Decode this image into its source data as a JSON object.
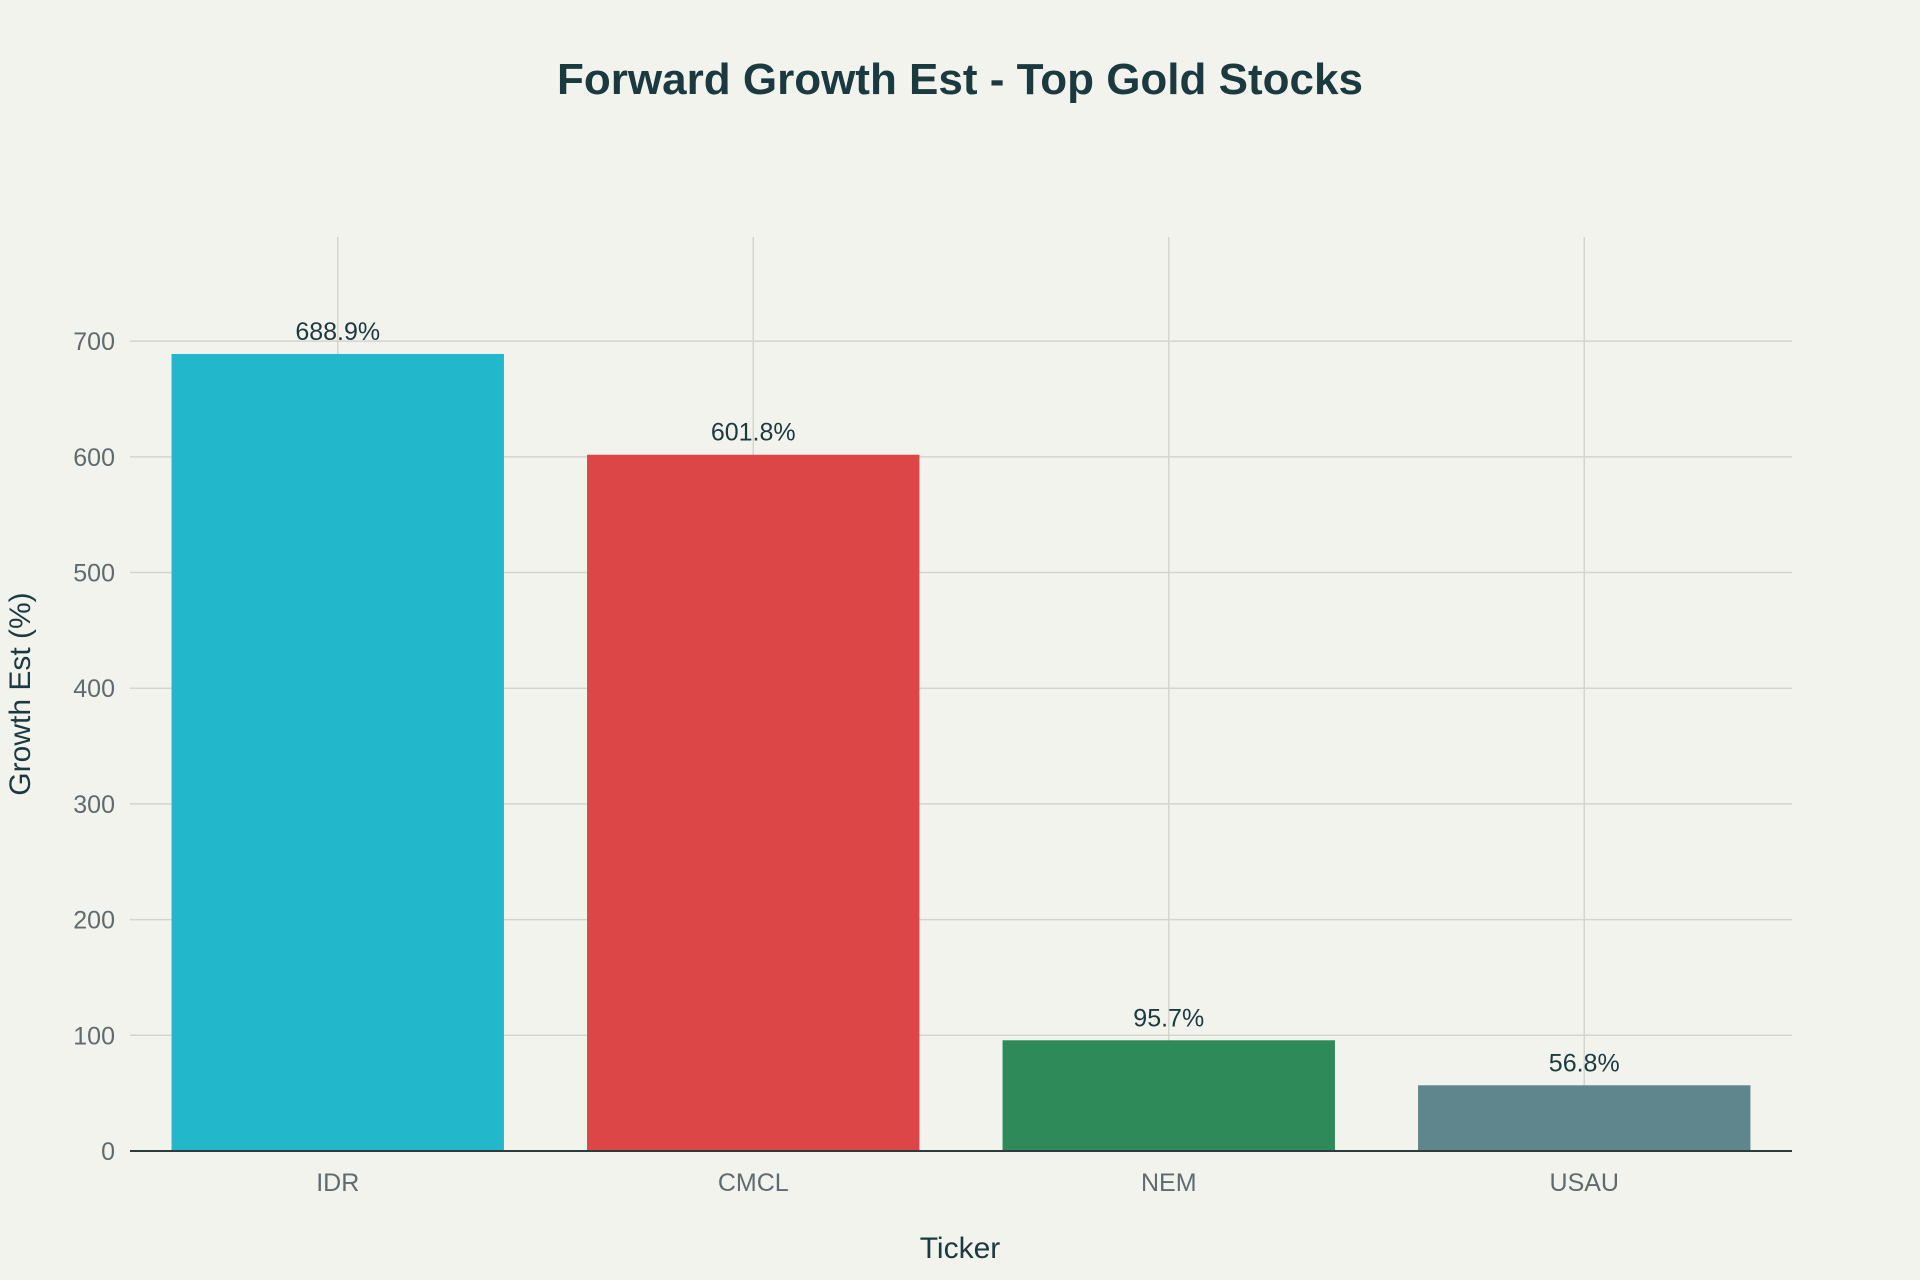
{
  "chart_data": {
    "type": "bar",
    "title": "Forward Growth Est - Top Gold Stocks",
    "xlabel": "Ticker",
    "ylabel": "Growth Est (%)",
    "categories": [
      "IDR",
      "CMCL",
      "NEM",
      "USAU"
    ],
    "values": [
      688.9,
      601.8,
      95.7,
      56.8
    ],
    "data_labels": [
      "688.9%",
      "601.8%",
      "95.7%",
      "56.8%"
    ],
    "colors": [
      "#22b7cb",
      "#dc4647",
      "#2e8a58",
      "#5e868c"
    ],
    "ylim": [
      0,
      790
    ],
    "yticks": [
      0,
      100,
      200,
      300,
      400,
      500,
      600,
      700
    ],
    "grid": true,
    "legend": "none"
  }
}
